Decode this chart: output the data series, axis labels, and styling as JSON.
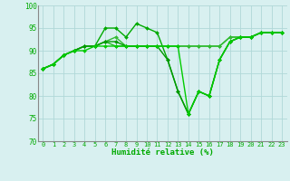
{
  "series": [
    [
      86,
      87,
      89,
      90,
      91,
      91,
      92,
      91,
      91,
      91,
      91,
      91,
      91,
      91,
      91,
      91,
      91,
      91,
      93,
      93,
      93,
      94,
      94,
      94
    ],
    [
      86,
      87,
      89,
      90,
      91,
      91,
      95,
      95,
      93,
      96,
      95,
      94,
      88,
      81,
      76,
      81,
      80,
      88,
      92,
      93,
      93,
      94,
      94,
      94
    ],
    [
      86,
      87,
      89,
      90,
      91,
      91,
      92,
      93,
      91,
      91,
      91,
      91,
      91,
      91,
      91,
      91,
      91,
      91,
      93,
      93,
      93,
      94,
      94,
      94
    ],
    [
      86,
      87,
      89,
      90,
      91,
      91,
      92,
      92,
      91,
      91,
      91,
      91,
      88,
      81,
      76,
      81,
      80,
      88,
      92,
      93,
      93,
      94,
      94,
      94
    ],
    [
      86,
      87,
      89,
      90,
      90,
      91,
      91,
      91,
      91,
      91,
      91,
      91,
      91,
      91,
      76,
      81,
      80,
      88,
      92,
      93,
      93,
      94,
      94,
      94
    ]
  ],
  "x_labels": [
    "0",
    "1",
    "2",
    "3",
    "4",
    "5",
    "6",
    "7",
    "8",
    "9",
    "10",
    "11",
    "12",
    "13",
    "14",
    "15",
    "16",
    "17",
    "18",
    "19",
    "20",
    "21",
    "22",
    "23"
  ],
  "xlabel": "Humidité relative (%)",
  "ylim": [
    70,
    100
  ],
  "yticks": [
    70,
    75,
    80,
    85,
    90,
    95,
    100
  ],
  "bgcolor": "#d8f0f0",
  "grid_color": "#b0d8d8",
  "line_color": "#00bb00",
  "marker": "D",
  "markersize": 2.0,
  "linewidth": 1.0,
  "xlabel_fontsize": 6.5,
  "xlabel_color": "#00aa00",
  "tick_fontsize": 5.0,
  "tick_color": "#00aa00"
}
